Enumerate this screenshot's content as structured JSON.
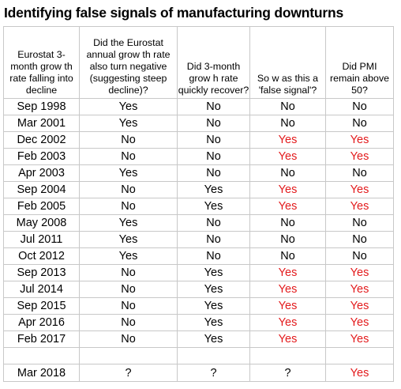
{
  "title": "Identifying false signals of manufacturing downturns",
  "headers": [
    "Eurostat 3-month grow th rate falling into decline",
    "Did the Eurostat annual grow th rate also turn negative (suggesting steep decline)?",
    "Did 3-month grow h rate quickly recover?",
    "So w as this a 'false signal'?",
    "Did PMI remain above 50?"
  ],
  "rows": [
    {
      "date": "Sep 1998",
      "annual": "Yes",
      "recover": "No",
      "false_signal": "No",
      "pmi": "No"
    },
    {
      "date": "Mar 2001",
      "annual": "Yes",
      "recover": "No",
      "false_signal": "No",
      "pmi": "No"
    },
    {
      "date": "Dec 2002",
      "annual": "No",
      "recover": "No",
      "false_signal": "Yes",
      "pmi": "Yes"
    },
    {
      "date": "Feb 2003",
      "annual": "No",
      "recover": "No",
      "false_signal": "Yes",
      "pmi": "Yes"
    },
    {
      "date": "Apr 2003",
      "annual": "Yes",
      "recover": "No",
      "false_signal": "No",
      "pmi": "No"
    },
    {
      "date": "Sep 2004",
      "annual": "No",
      "recover": "Yes",
      "false_signal": "Yes",
      "pmi": "Yes"
    },
    {
      "date": "Feb 2005",
      "annual": "No",
      "recover": "Yes",
      "false_signal": "Yes",
      "pmi": "Yes"
    },
    {
      "date": "May 2008",
      "annual": "Yes",
      "recover": "No",
      "false_signal": "No",
      "pmi": "No"
    },
    {
      "date": "Jul 2011",
      "annual": "Yes",
      "recover": "No",
      "false_signal": "No",
      "pmi": "No"
    },
    {
      "date": "Oct 2012",
      "annual": "Yes",
      "recover": "No",
      "false_signal": "No",
      "pmi": "No"
    },
    {
      "date": "Sep 2013",
      "annual": "No",
      "recover": "Yes",
      "false_signal": "Yes",
      "pmi": "Yes"
    },
    {
      "date": "Jul 2014",
      "annual": "No",
      "recover": "Yes",
      "false_signal": "Yes",
      "pmi": "Yes"
    },
    {
      "date": "Sep 2015",
      "annual": "No",
      "recover": "Yes",
      "false_signal": "Yes",
      "pmi": "Yes"
    },
    {
      "date": "Apr 2016",
      "annual": "No",
      "recover": "Yes",
      "false_signal": "Yes",
      "pmi": "Yes"
    },
    {
      "date": "Feb 2017",
      "annual": "No",
      "recover": "Yes",
      "false_signal": "Yes",
      "pmi": "Yes"
    }
  ],
  "final_row": {
    "date": "Mar 2018",
    "annual": "?",
    "recover": "?",
    "false_signal": "?",
    "pmi": "Yes"
  },
  "colors": {
    "highlight": "#e31a1c",
    "text": "#000000",
    "grid": "#c8c8c8"
  }
}
